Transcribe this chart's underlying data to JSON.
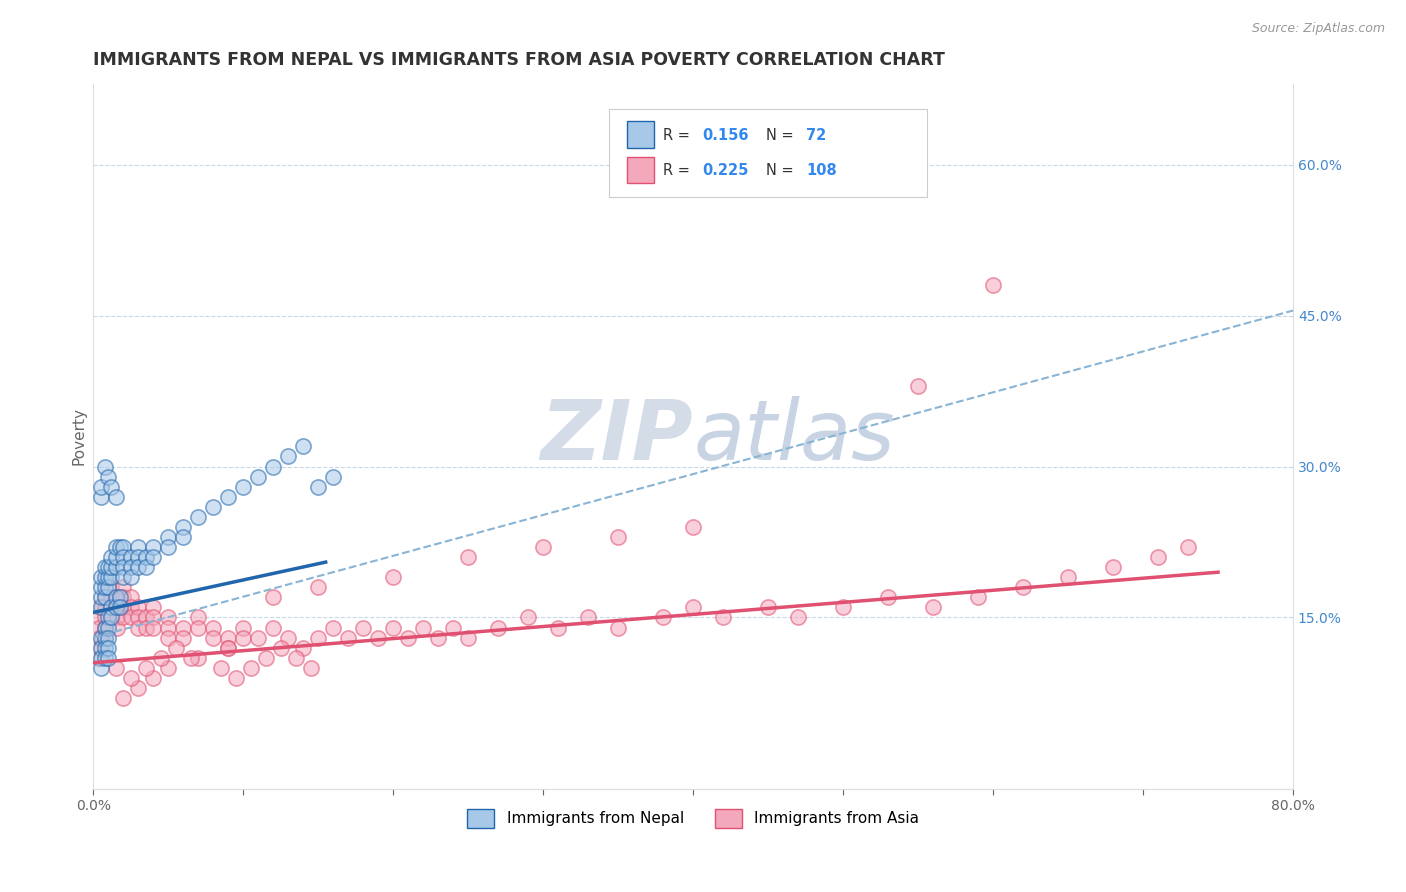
{
  "title": "IMMIGRANTS FROM NEPAL VS IMMIGRANTS FROM ASIA POVERTY CORRELATION CHART",
  "source": "Source: ZipAtlas.com",
  "ylabel": "Poverty",
  "watermark": "ZIPatlas",
  "xlim": [
    0.0,
    0.8
  ],
  "ylim": [
    -0.02,
    0.68
  ],
  "ytick_right": [
    0.0,
    0.15,
    0.3,
    0.45,
    0.6
  ],
  "ytick_right_labels": [
    "",
    "15.0%",
    "30.0%",
    "45.0%",
    "60.0%"
  ],
  "color_nepal": "#a8c8e8",
  "color_asia": "#f4a8bc",
  "color_line_nepal": "#2166ac",
  "color_line_asia": "#e05070",
  "color_grid": "#c8d8e8",
  "color_dashed": "#8ab4d4",
  "nepal_scatter_x": [
    0.005,
    0.005,
    0.005,
    0.005,
    0.005,
    0.005,
    0.005,
    0.005,
    0.008,
    0.008,
    0.008,
    0.008,
    0.008,
    0.008,
    0.008,
    0.008,
    0.01,
    0.01,
    0.01,
    0.01,
    0.01,
    0.01,
    0.01,
    0.01,
    0.012,
    0.012,
    0.012,
    0.012,
    0.012,
    0.015,
    0.015,
    0.015,
    0.015,
    0.015,
    0.018,
    0.018,
    0.018,
    0.02,
    0.02,
    0.02,
    0.02,
    0.025,
    0.025,
    0.025,
    0.03,
    0.03,
    0.03,
    0.035,
    0.035,
    0.04,
    0.04,
    0.05,
    0.05,
    0.06,
    0.06,
    0.07,
    0.08,
    0.09,
    0.1,
    0.11,
    0.12,
    0.13,
    0.14,
    0.15,
    0.16,
    0.005,
    0.005,
    0.008,
    0.01,
    0.012,
    0.015
  ],
  "nepal_scatter_y": [
    0.16,
    0.17,
    0.18,
    0.19,
    0.13,
    0.12,
    0.11,
    0.1,
    0.17,
    0.18,
    0.19,
    0.2,
    0.14,
    0.13,
    0.12,
    0.11,
    0.18,
    0.19,
    0.2,
    0.15,
    0.14,
    0.13,
    0.12,
    0.11,
    0.19,
    0.2,
    0.21,
    0.16,
    0.15,
    0.2,
    0.21,
    0.22,
    0.17,
    0.16,
    0.22,
    0.17,
    0.16,
    0.22,
    0.21,
    0.2,
    0.19,
    0.21,
    0.2,
    0.19,
    0.22,
    0.21,
    0.2,
    0.21,
    0.2,
    0.22,
    0.21,
    0.23,
    0.22,
    0.24,
    0.23,
    0.25,
    0.26,
    0.27,
    0.28,
    0.29,
    0.3,
    0.31,
    0.32,
    0.28,
    0.29,
    0.27,
    0.28,
    0.3,
    0.29,
    0.28,
    0.27
  ],
  "asia_scatter_x": [
    0.004,
    0.004,
    0.004,
    0.004,
    0.004,
    0.004,
    0.008,
    0.008,
    0.008,
    0.008,
    0.008,
    0.012,
    0.012,
    0.012,
    0.012,
    0.016,
    0.016,
    0.016,
    0.016,
    0.02,
    0.02,
    0.02,
    0.02,
    0.025,
    0.025,
    0.025,
    0.03,
    0.03,
    0.03,
    0.035,
    0.035,
    0.04,
    0.04,
    0.04,
    0.05,
    0.05,
    0.05,
    0.06,
    0.06,
    0.07,
    0.07,
    0.08,
    0.08,
    0.09,
    0.09,
    0.1,
    0.1,
    0.11,
    0.12,
    0.13,
    0.14,
    0.15,
    0.16,
    0.17,
    0.18,
    0.19,
    0.2,
    0.21,
    0.22,
    0.23,
    0.24,
    0.25,
    0.27,
    0.29,
    0.31,
    0.33,
    0.35,
    0.38,
    0.4,
    0.42,
    0.45,
    0.47,
    0.5,
    0.53,
    0.56,
    0.59,
    0.62,
    0.65,
    0.68,
    0.71,
    0.73,
    0.55,
    0.6,
    0.4,
    0.35,
    0.3,
    0.25,
    0.2,
    0.15,
    0.12,
    0.09,
    0.07,
    0.05,
    0.04,
    0.03,
    0.02,
    0.015,
    0.025,
    0.035,
    0.045,
    0.055,
    0.065,
    0.085,
    0.095,
    0.105,
    0.115,
    0.125,
    0.135,
    0.145
  ],
  "asia_scatter_y": [
    0.16,
    0.15,
    0.14,
    0.13,
    0.12,
    0.11,
    0.17,
    0.16,
    0.15,
    0.14,
    0.13,
    0.18,
    0.17,
    0.16,
    0.15,
    0.17,
    0.16,
    0.15,
    0.14,
    0.18,
    0.17,
    0.16,
    0.15,
    0.17,
    0.16,
    0.15,
    0.16,
    0.15,
    0.14,
    0.15,
    0.14,
    0.16,
    0.15,
    0.14,
    0.15,
    0.14,
    0.13,
    0.14,
    0.13,
    0.15,
    0.14,
    0.14,
    0.13,
    0.13,
    0.12,
    0.14,
    0.13,
    0.13,
    0.14,
    0.13,
    0.12,
    0.13,
    0.14,
    0.13,
    0.14,
    0.13,
    0.14,
    0.13,
    0.14,
    0.13,
    0.14,
    0.13,
    0.14,
    0.15,
    0.14,
    0.15,
    0.14,
    0.15,
    0.16,
    0.15,
    0.16,
    0.15,
    0.16,
    0.17,
    0.16,
    0.17,
    0.18,
    0.19,
    0.2,
    0.21,
    0.22,
    0.38,
    0.48,
    0.24,
    0.23,
    0.22,
    0.21,
    0.19,
    0.18,
    0.17,
    0.12,
    0.11,
    0.1,
    0.09,
    0.08,
    0.07,
    0.1,
    0.09,
    0.1,
    0.11,
    0.12,
    0.11,
    0.1,
    0.09,
    0.1,
    0.11,
    0.12,
    0.11,
    0.1
  ],
  "background_color": "#ffffff",
  "title_color": "#333333",
  "title_fontsize": 12.5,
  "axis_label_fontsize": 11,
  "tick_fontsize": 10,
  "watermark_color": "#d4dce8",
  "watermark_fontsize": 60,
  "nepal_line_x": [
    0.0,
    0.155
  ],
  "nepal_line_y": [
    0.155,
    0.205
  ],
  "asia_line_x": [
    0.0,
    0.75
  ],
  "asia_line_y": [
    0.105,
    0.195
  ],
  "dashed_line_x": [
    0.0,
    0.8
  ],
  "dashed_line_y": [
    0.13,
    0.455
  ]
}
